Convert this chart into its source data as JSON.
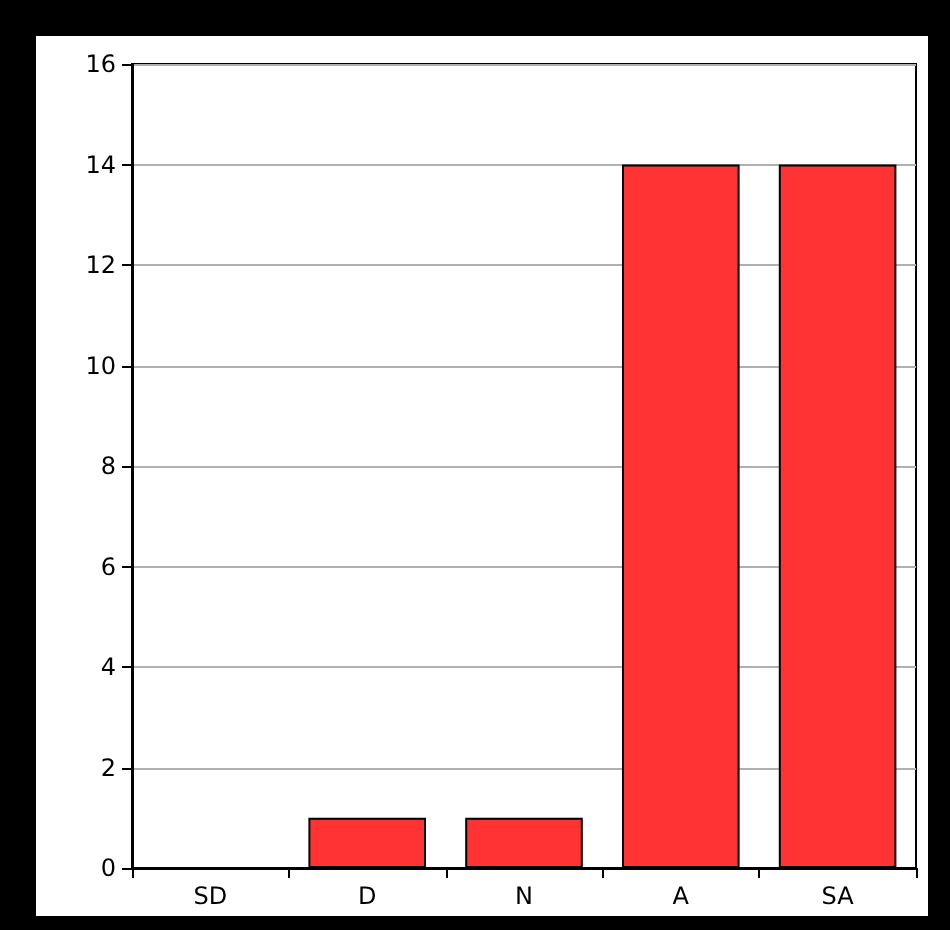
{
  "chart_data": {
    "type": "bar",
    "categories": [
      "SD",
      "D",
      "N",
      "A",
      "SA"
    ],
    "values": [
      0,
      1,
      1,
      14,
      14
    ],
    "color": "#ff3333",
    "ylim": [
      0,
      16
    ],
    "yticks": [
      0,
      2,
      4,
      6,
      8,
      10,
      12,
      14,
      16
    ],
    "grid": "y"
  }
}
